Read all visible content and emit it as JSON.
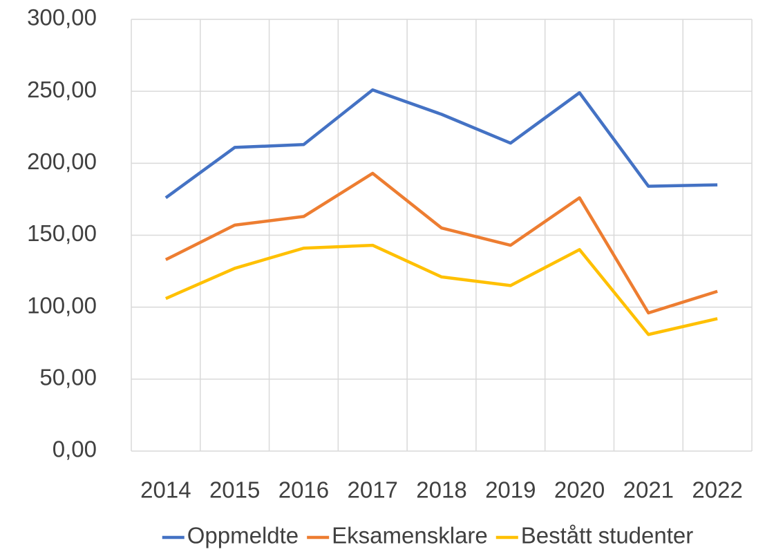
{
  "chart_data": {
    "type": "line",
    "categories": [
      "2014",
      "2015",
      "2016",
      "2017",
      "2018",
      "2019",
      "2020",
      "2021",
      "2022"
    ],
    "series": [
      {
        "name": "Oppmeldte",
        "color": "#4472c4",
        "values": [
          176,
          211,
          213,
          251,
          234,
          214,
          249,
          184,
          185
        ]
      },
      {
        "name": "Eksamensklare",
        "color": "#ed7d31",
        "values": [
          133,
          157,
          163,
          193,
          155,
          143,
          176,
          96,
          111
        ]
      },
      {
        "name": "Bestått studenter",
        "color": "#ffc000",
        "values": [
          106,
          127,
          141,
          143,
          121,
          115,
          140,
          81,
          92
        ]
      }
    ],
    "ylim": [
      0,
      300
    ],
    "yticks": [
      {
        "value": 0,
        "label": "0,00"
      },
      {
        "value": 50,
        "label": "50,00"
      },
      {
        "value": 100,
        "label": "100,00"
      },
      {
        "value": 150,
        "label": "150,00"
      },
      {
        "value": 200,
        "label": "200,00"
      },
      {
        "value": 250,
        "label": "250,00"
      },
      {
        "value": 300,
        "label": "300,00"
      }
    ],
    "grid": true,
    "legend": "bottom"
  }
}
